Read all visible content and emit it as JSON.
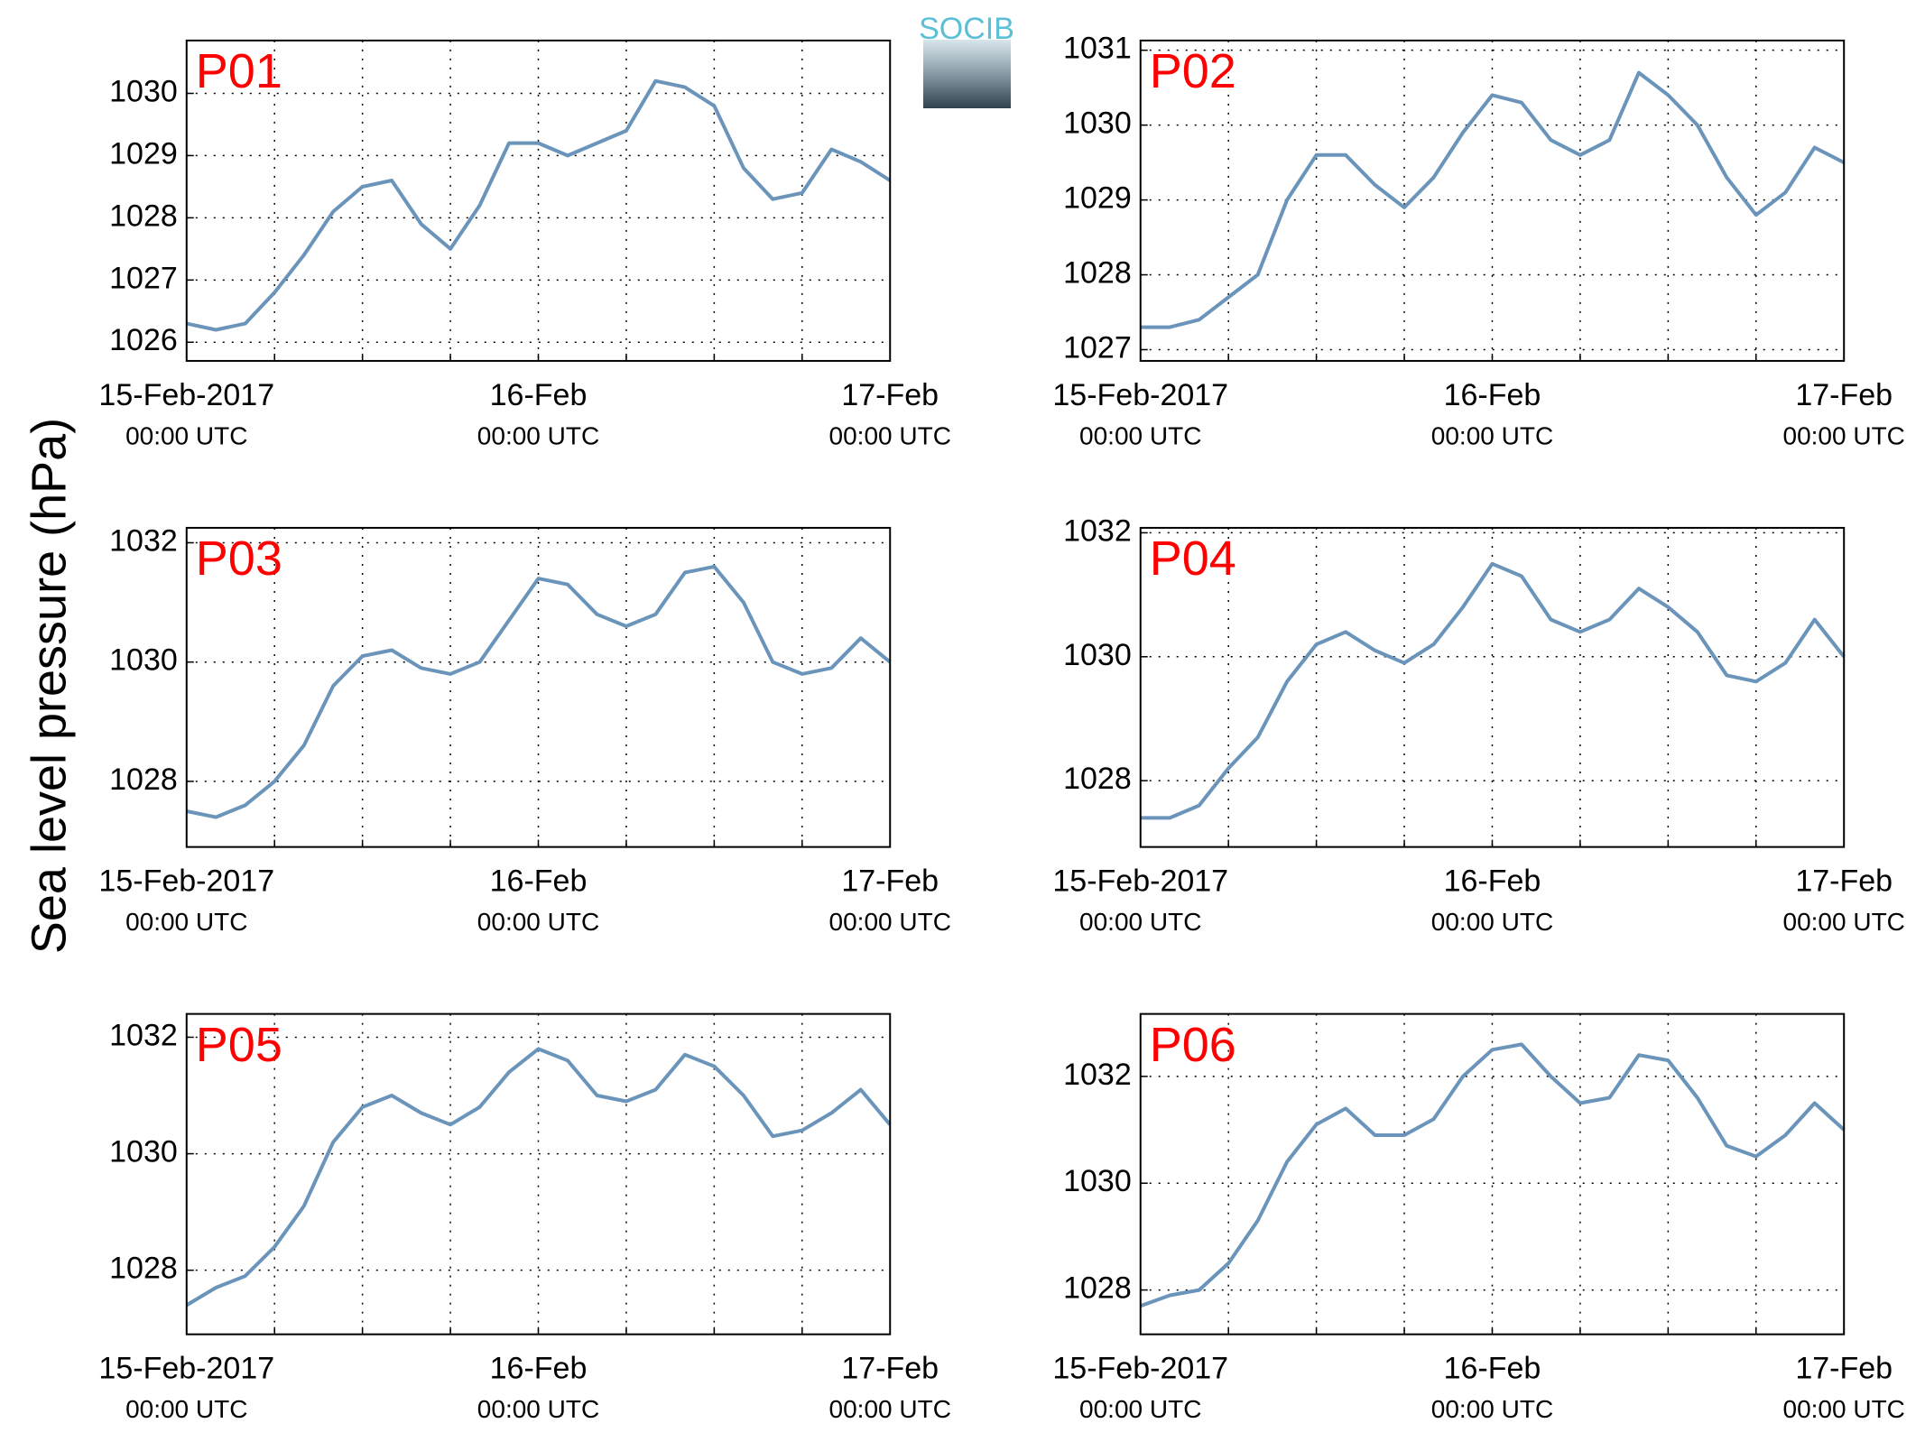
{
  "ylabel": "Sea level pressure (hPa)",
  "logo": "SOCIB",
  "chart_data": [
    {
      "type": "line",
      "title": "P01",
      "color": "#6a94b9",
      "grid": true,
      "x": [
        0,
        2,
        4,
        6,
        8,
        10,
        12,
        14,
        16,
        18,
        20,
        22,
        24,
        26,
        28,
        30,
        32,
        34,
        36,
        38,
        40,
        42,
        44,
        46,
        48
      ],
      "values": [
        1026.3,
        1026.2,
        1026.3,
        1026.8,
        1027.4,
        1028.1,
        1028.5,
        1028.6,
        1027.9,
        1027.5,
        1028.2,
        1029.2,
        1029.2,
        1029.0,
        1029.2,
        1029.4,
        1030.2,
        1030.1,
        1029.8,
        1028.8,
        1028.3,
        1028.4,
        1029.1,
        1028.9,
        1028.6
      ],
      "xlim": [
        0,
        48
      ],
      "ylim": [
        1025.7,
        1030.85
      ],
      "yticks": [
        1026,
        1027,
        1028,
        1029,
        1030
      ],
      "xticks": [
        {
          "value": 0,
          "label": "15-Feb-2017",
          "sublabel": "00:00 UTC"
        },
        {
          "value": 24,
          "label": "16-Feb",
          "sublabel": "00:00 UTC"
        },
        {
          "value": 48,
          "label": "17-Feb",
          "sublabel": "00:00 UTC"
        }
      ],
      "xgrid": [
        6,
        12,
        18,
        30,
        36,
        42
      ]
    },
    {
      "type": "line",
      "title": "P02",
      "color": "#6a94b9",
      "grid": true,
      "x": [
        0,
        2,
        4,
        6,
        8,
        10,
        12,
        14,
        16,
        18,
        20,
        22,
        24,
        26,
        28,
        30,
        32,
        34,
        36,
        38,
        40,
        42,
        44,
        46,
        48
      ],
      "values": [
        1027.3,
        1027.3,
        1027.4,
        1027.7,
        1028.0,
        1029.0,
        1029.6,
        1029.6,
        1029.2,
        1028.9,
        1029.3,
        1029.9,
        1030.4,
        1030.3,
        1029.8,
        1029.6,
        1029.8,
        1030.7,
        1030.4,
        1030.0,
        1029.3,
        1028.8,
        1029.1,
        1029.7,
        1029.5
      ],
      "xlim": [
        0,
        48
      ],
      "ylim": [
        1026.85,
        1031.13
      ],
      "yticks": [
        1027,
        1028,
        1029,
        1030,
        1031
      ],
      "xticks": [
        {
          "value": 0,
          "label": "15-Feb-2017",
          "sublabel": "00:00 UTC"
        },
        {
          "value": 24,
          "label": "16-Feb",
          "sublabel": "00:00 UTC"
        },
        {
          "value": 48,
          "label": "17-Feb",
          "sublabel": "00:00 UTC"
        }
      ],
      "xgrid": [
        6,
        12,
        18,
        30,
        36,
        42
      ]
    },
    {
      "type": "line",
      "title": "P03",
      "color": "#6a94b9",
      "grid": true,
      "x": [
        0,
        2,
        4,
        6,
        8,
        10,
        12,
        14,
        16,
        18,
        20,
        22,
        24,
        26,
        28,
        30,
        32,
        34,
        36,
        38,
        40,
        42,
        44,
        46,
        48
      ],
      "values": [
        1027.5,
        1027.4,
        1027.6,
        1028.0,
        1028.6,
        1029.6,
        1030.1,
        1030.2,
        1029.9,
        1029.8,
        1030.0,
        1030.7,
        1031.4,
        1031.3,
        1030.8,
        1030.6,
        1030.8,
        1031.5,
        1031.6,
        1031.0,
        1030.0,
        1029.8,
        1029.9,
        1030.4,
        1030.0
      ],
      "xlim": [
        0,
        48
      ],
      "ylim": [
        1026.9,
        1032.25
      ],
      "yticks": [
        1028,
        1030,
        1032
      ],
      "xticks": [
        {
          "value": 0,
          "label": "15-Feb-2017",
          "sublabel": "00:00 UTC"
        },
        {
          "value": 24,
          "label": "16-Feb",
          "sublabel": "00:00 UTC"
        },
        {
          "value": 48,
          "label": "17-Feb",
          "sublabel": "00:00 UTC"
        }
      ],
      "xgrid": [
        6,
        12,
        18,
        30,
        36,
        42
      ]
    },
    {
      "type": "line",
      "title": "P04",
      "color": "#6a94b9",
      "grid": true,
      "x": [
        0,
        2,
        4,
        6,
        8,
        10,
        12,
        14,
        16,
        18,
        20,
        22,
        24,
        26,
        28,
        30,
        32,
        34,
        36,
        38,
        40,
        42,
        44,
        46,
        48
      ],
      "values": [
        1027.4,
        1027.4,
        1027.6,
        1028.2,
        1028.7,
        1029.6,
        1030.2,
        1030.4,
        1030.1,
        1029.9,
        1030.2,
        1030.8,
        1031.5,
        1031.3,
        1030.6,
        1030.4,
        1030.6,
        1031.1,
        1030.8,
        1030.4,
        1029.7,
        1029.6,
        1029.9,
        1030.6,
        1030.0
      ],
      "xlim": [
        0,
        48
      ],
      "ylim": [
        1026.93,
        1032.08
      ],
      "yticks": [
        1028,
        1030,
        1032
      ],
      "xticks": [
        {
          "value": 0,
          "label": "15-Feb-2017",
          "sublabel": "00:00 UTC"
        },
        {
          "value": 24,
          "label": "16-Feb",
          "sublabel": "00:00 UTC"
        },
        {
          "value": 48,
          "label": "17-Feb",
          "sublabel": "00:00 UTC"
        }
      ],
      "xgrid": [
        6,
        12,
        18,
        30,
        36,
        42
      ]
    },
    {
      "type": "line",
      "title": "P05",
      "color": "#6a94b9",
      "grid": true,
      "x": [
        0,
        2,
        4,
        6,
        8,
        10,
        12,
        14,
        16,
        18,
        20,
        22,
        24,
        26,
        28,
        30,
        32,
        34,
        36,
        38,
        40,
        42,
        44,
        46,
        48
      ],
      "values": [
        1027.4,
        1027.7,
        1027.9,
        1028.4,
        1029.1,
        1030.2,
        1030.8,
        1031.0,
        1030.7,
        1030.5,
        1030.8,
        1031.4,
        1031.8,
        1031.6,
        1031.0,
        1030.9,
        1031.1,
        1031.7,
        1031.5,
        1031.0,
        1030.3,
        1030.4,
        1030.7,
        1031.1,
        1030.5
      ],
      "xlim": [
        0,
        48
      ],
      "ylim": [
        1026.9,
        1032.4
      ],
      "yticks": [
        1028,
        1030,
        1032
      ],
      "xticks": [
        {
          "value": 0,
          "label": "15-Feb-2017",
          "sublabel": "00:00 UTC"
        },
        {
          "value": 24,
          "label": "16-Feb",
          "sublabel": "00:00 UTC"
        },
        {
          "value": 48,
          "label": "17-Feb",
          "sublabel": "00:00 UTC"
        }
      ],
      "xgrid": [
        6,
        12,
        18,
        30,
        36,
        42
      ]
    },
    {
      "type": "line",
      "title": "P06",
      "color": "#6a94b9",
      "grid": true,
      "x": [
        0,
        2,
        4,
        6,
        8,
        10,
        12,
        14,
        16,
        18,
        20,
        22,
        24,
        26,
        28,
        30,
        32,
        34,
        36,
        38,
        40,
        42,
        44,
        46,
        48
      ],
      "values": [
        1027.7,
        1027.9,
        1028.0,
        1028.5,
        1029.3,
        1030.4,
        1031.1,
        1031.4,
        1030.9,
        1030.9,
        1031.2,
        1032.0,
        1032.5,
        1032.6,
        1032.0,
        1031.5,
        1031.6,
        1032.4,
        1032.3,
        1031.6,
        1030.7,
        1030.5,
        1030.9,
        1031.5,
        1031.0
      ],
      "xlim": [
        0,
        48
      ],
      "ylim": [
        1027.17,
        1033.17
      ],
      "yticks": [
        1028,
        1030,
        1032
      ],
      "xticks": [
        {
          "value": 0,
          "label": "15-Feb-2017",
          "sublabel": "00:00 UTC"
        },
        {
          "value": 24,
          "label": "16-Feb",
          "sublabel": "00:00 UTC"
        },
        {
          "value": 48,
          "label": "17-Feb",
          "sublabel": "00:00 UTC"
        }
      ],
      "xgrid": [
        6,
        12,
        18,
        30,
        36,
        42
      ]
    }
  ]
}
